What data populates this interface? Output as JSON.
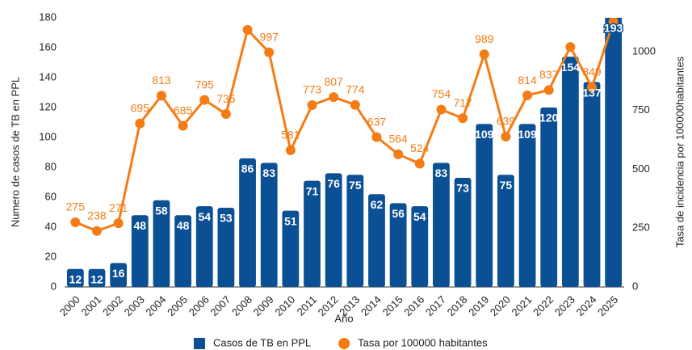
{
  "chart_data": {
    "type": "bar_line",
    "x_label": "Año",
    "y_label": "Numero de casos de TB en PPL",
    "y2_label": "Tasa de incidencia por 100000habitantes",
    "categories": [
      "2000",
      "2001",
      "2002",
      "2003",
      "2004",
      "2005",
      "2006",
      "2007",
      "2008",
      "2009",
      "2010",
      "2011",
      "2012",
      "2013",
      "2014",
      "2015",
      "2016",
      "2017",
      "2018",
      "2019",
      "2020",
      "2021",
      "2022",
      "2023",
      "2024",
      "2025"
    ],
    "series": [
      {
        "name": "Casos de TB en PPL",
        "type": "bar",
        "color": "#0b4f94",
        "values": [
          12,
          12,
          16,
          48,
          58,
          48,
          54,
          53,
          86,
          83,
          51,
          71,
          76,
          75,
          62,
          56,
          54,
          83,
          73,
          109,
          75,
          109,
          120,
          154,
          137,
          193
        ]
      },
      {
        "name": "Tasa por 100000 habitantes",
        "type": "line",
        "axis": "y2",
        "color": "#f57c14",
        "values": [
          275,
          238,
          271,
          695,
          813,
          685,
          795,
          735,
          1093,
          997,
          581,
          773,
          807,
          774,
          637,
          564,
          524,
          754,
          717,
          989,
          639,
          814,
          837,
          1020,
          849,
          1127
        ],
        "value_labels": [
          "275",
          "238",
          "271",
          "695",
          "813",
          "685",
          "795",
          "735",
          null,
          "997",
          "581",
          "773",
          "807",
          "774",
          "637",
          "564",
          "524",
          "754",
          "717",
          "989",
          "639",
          "814",
          "837",
          null,
          "849",
          null
        ]
      }
    ],
    "ylim": [
      0,
      180
    ],
    "yticks": [
      0,
      20,
      40,
      60,
      80,
      100,
      120,
      140,
      160,
      180
    ],
    "y2lim": [
      0,
      1144
    ],
    "y2ticks": [
      0,
      250,
      500,
      750,
      1000
    ],
    "grid": false,
    "legend": "bottom"
  }
}
